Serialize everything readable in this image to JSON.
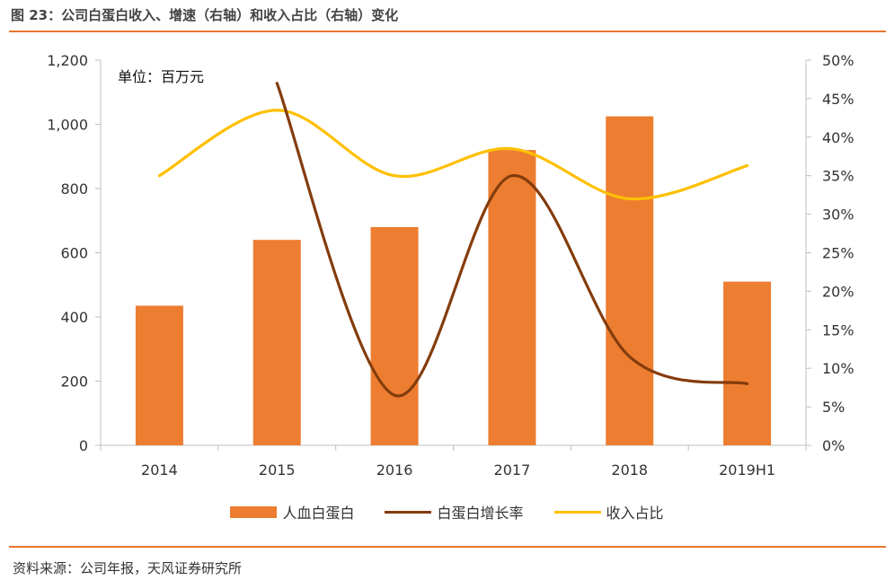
{
  "figure_title": "图 23：公司白蛋白收入、增速（右轴）和收入占比（右轴）变化",
  "source": "资料来源：公司年报，天风证券研究所",
  "colors": {
    "bars": "#ed7d31",
    "growth_line": "#843c0c",
    "share_line": "#ffc000",
    "rule": "#e8762b",
    "axis": "#bfbfbf"
  },
  "chart_data": {
    "type": "bar",
    "title": "",
    "unit_label": "单位：百万元",
    "categories": [
      "2014",
      "2015",
      "2016",
      "2017",
      "2018",
      "2019H1"
    ],
    "y_left": {
      "min": 0,
      "max": 1200,
      "ticks": [
        "0",
        "200",
        "400",
        "600",
        "800",
        "1,000",
        "1,200"
      ]
    },
    "y_right": {
      "min": 0,
      "max": 50,
      "ticks": [
        "0%",
        "5%",
        "10%",
        "15%",
        "20%",
        "25%",
        "30%",
        "35%",
        "40%",
        "45%",
        "50%"
      ]
    },
    "series": [
      {
        "name": "人血白蛋白",
        "type": "bar",
        "axis": "left",
        "values": [
          435,
          640,
          680,
          920,
          1025,
          510
        ]
      },
      {
        "name": "白蛋白增长率",
        "type": "line",
        "axis": "right",
        "values": [
          null,
          47.0,
          6.5,
          35.0,
          11.5,
          8.0
        ]
      },
      {
        "name": "收入占比",
        "type": "line",
        "axis": "right",
        "values": [
          35.0,
          43.5,
          35.0,
          38.5,
          32.0,
          36.3
        ]
      }
    ],
    "legend_position": "bottom",
    "grid": false
  }
}
